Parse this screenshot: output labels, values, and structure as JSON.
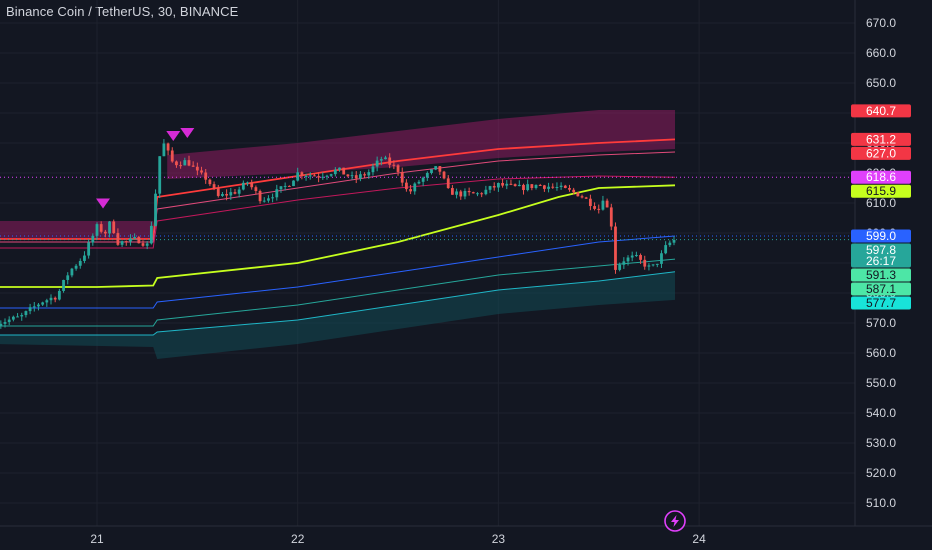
{
  "header": {
    "title": "Binance Coin / TetherUS, 30, BINANCE"
  },
  "chart_data": {
    "type": "candlestick",
    "symbol": "Binance Coin / TetherUS",
    "interval": "30",
    "exchange": "BINANCE",
    "y_range": [
      502,
      675
    ],
    "y_ticks": [
      670,
      660,
      650,
      640,
      630,
      620,
      610,
      600,
      590,
      580,
      570,
      560,
      550,
      540,
      530,
      520,
      510
    ],
    "y_tick_labels": [
      "670.0",
      "660.0",
      "650.0",
      "640.0",
      "630.0",
      "620.0",
      "610.0",
      "600.0",
      "590.0",
      "580.0",
      "570.0",
      "560.0",
      "550.0",
      "540.0",
      "530.0",
      "520.0",
      "510.0"
    ],
    "x_range": [
      20.5,
      24.25
    ],
    "x_ticks": [
      21,
      22,
      23,
      24
    ],
    "x_tick_labels": [
      "21",
      "22",
      "23",
      "24"
    ],
    "price_path": [
      [
        20.5,
        570
      ],
      [
        20.62,
        572
      ],
      [
        20.72,
        577
      ],
      [
        20.8,
        579
      ],
      [
        20.86,
        587
      ],
      [
        20.93,
        592
      ],
      [
        21.0,
        602
      ],
      [
        21.04,
        600
      ],
      [
        21.07,
        604
      ],
      [
        21.1,
        597
      ],
      [
        21.15,
        597
      ],
      [
        21.2,
        598
      ],
      [
        21.25,
        596
      ],
      [
        21.28,
        606
      ],
      [
        21.31,
        625
      ],
      [
        21.33,
        630
      ],
      [
        21.38,
        623
      ],
      [
        21.45,
        624
      ],
      [
        21.5,
        620
      ],
      [
        21.55,
        618
      ],
      [
        21.6,
        612
      ],
      [
        21.7,
        614
      ],
      [
        21.75,
        617
      ],
      [
        21.82,
        611
      ],
      [
        21.88,
        613
      ],
      [
        21.95,
        616
      ],
      [
        22.0,
        620
      ],
      [
        22.1,
        619
      ],
      [
        22.2,
        621
      ],
      [
        22.28,
        618
      ],
      [
        22.35,
        620
      ],
      [
        22.42,
        625
      ],
      [
        22.5,
        621
      ],
      [
        22.55,
        613
      ],
      [
        22.6,
        617
      ],
      [
        22.7,
        622
      ],
      [
        22.75,
        614
      ],
      [
        22.8,
        613
      ],
      [
        22.9,
        613
      ],
      [
        23.0,
        616
      ],
      [
        23.1,
        615
      ],
      [
        23.2,
        616
      ],
      [
        23.3,
        615
      ],
      [
        23.4,
        613
      ],
      [
        23.5,
        608
      ],
      [
        23.52,
        612
      ],
      [
        23.56,
        605
      ],
      [
        23.58,
        588
      ],
      [
        23.62,
        591
      ],
      [
        23.68,
        592
      ],
      [
        23.72,
        590
      ],
      [
        23.76,
        588
      ],
      [
        23.8,
        591
      ],
      [
        23.84,
        596
      ],
      [
        23.88,
        597.8
      ]
    ],
    "candles_end_x": 23.88,
    "overlay_lines": [
      {
        "color": "#ff3b3b",
        "points": [
          [
            20.5,
            598
          ],
          [
            21.28,
            598
          ],
          [
            21.3,
            612
          ],
          [
            22.0,
            619
          ],
          [
            22.5,
            624
          ],
          [
            23.0,
            628
          ],
          [
            23.5,
            630
          ],
          [
            23.88,
            631.2
          ]
        ]
      },
      {
        "color": "#e04a7a",
        "points": [
          [
            20.5,
            597
          ],
          [
            21.28,
            597
          ],
          [
            21.3,
            608
          ],
          [
            22.0,
            615
          ],
          [
            22.5,
            620
          ],
          [
            23.0,
            624
          ],
          [
            23.5,
            626
          ],
          [
            23.88,
            627
          ]
        ]
      },
      {
        "color": "#c2185b",
        "points": [
          [
            20.5,
            595
          ],
          [
            21.28,
            595
          ],
          [
            21.3,
            604
          ],
          [
            22.0,
            611
          ],
          [
            22.5,
            615
          ],
          [
            23.0,
            618
          ],
          [
            23.5,
            619
          ],
          [
            23.88,
            618.6
          ]
        ]
      },
      {
        "color": "#c6ff1e",
        "points": [
          [
            20.5,
            582
          ],
          [
            21.0,
            582
          ],
          [
            21.28,
            582.5
          ],
          [
            21.3,
            585
          ],
          [
            22.0,
            590
          ],
          [
            22.5,
            597
          ],
          [
            23.0,
            606
          ],
          [
            23.3,
            612
          ],
          [
            23.5,
            615
          ],
          [
            23.88,
            615.9
          ]
        ]
      },
      {
        "color": "#2962ff",
        "points": [
          [
            20.5,
            575
          ],
          [
            21.28,
            575
          ],
          [
            21.3,
            577
          ],
          [
            22.0,
            582
          ],
          [
            22.5,
            587
          ],
          [
            23.0,
            592
          ],
          [
            23.5,
            597
          ],
          [
            23.88,
            599
          ]
        ]
      },
      {
        "color": "#26a69a",
        "points": [
          [
            20.5,
            569
          ],
          [
            21.28,
            569
          ],
          [
            21.3,
            571
          ],
          [
            22.0,
            576
          ],
          [
            22.5,
            581
          ],
          [
            23.0,
            586
          ],
          [
            23.5,
            589
          ],
          [
            23.88,
            591.3
          ]
        ]
      },
      {
        "color": "#1fb6c7",
        "points": [
          [
            20.5,
            566
          ],
          [
            21.28,
            566
          ],
          [
            21.3,
            567
          ],
          [
            22.0,
            571
          ],
          [
            22.5,
            576
          ],
          [
            23.0,
            581
          ],
          [
            23.5,
            584
          ],
          [
            23.88,
            587.1
          ]
        ]
      }
    ],
    "upper_band": {
      "color": "#8e1b5e",
      "top": [
        [
          21.35,
          626
        ],
        [
          22.0,
          630
        ],
        [
          22.5,
          634
        ],
        [
          23.0,
          638
        ],
        [
          23.5,
          641
        ],
        [
          23.88,
          641
        ]
      ],
      "bottom": [
        [
          21.35,
          618
        ],
        [
          22.0,
          620
        ],
        [
          22.5,
          622
        ],
        [
          23.0,
          625
        ],
        [
          23.5,
          627
        ],
        [
          23.88,
          628
        ]
      ]
    },
    "lower_band": {
      "color": "#134650",
      "top": [
        [
          20.5,
          566
        ],
        [
          21.28,
          566
        ],
        [
          21.3,
          567
        ],
        [
          22.0,
          571
        ],
        [
          22.5,
          576
        ],
        [
          23.0,
          581
        ],
        [
          23.5,
          584
        ],
        [
          23.88,
          587
        ]
      ],
      "bottom": [
        [
          20.5,
          563
        ],
        [
          21.28,
          562
        ],
        [
          21.3,
          558
        ],
        [
          22.0,
          563
        ],
        [
          22.5,
          568
        ],
        [
          23.0,
          573
        ],
        [
          23.5,
          576
        ],
        [
          23.88,
          577.7
        ]
      ]
    },
    "dotted_levels": [
      {
        "price": 618.6,
        "color": "#e040fb"
      },
      {
        "price": 599.0,
        "color": "#2962ff"
      },
      {
        "price": 597.8,
        "color": "#26a69a"
      }
    ],
    "sell_markers": [
      21.03,
      21.38,
      21.45
    ],
    "price_badges": [
      {
        "text": "640.7",
        "price": 640.7,
        "bg": "#f23645",
        "fg": "#ffffff"
      },
      {
        "text": "631.2",
        "price": 631.2,
        "bg": "#f23645",
        "fg": "#ffffff"
      },
      {
        "text": "627.0",
        "price": 627.0,
        "bg": "#f23645",
        "fg": "#ffffff"
      },
      {
        "text": "618.6",
        "price": 618.6,
        "bg": "#e040fb",
        "fg": "#ffffff"
      },
      {
        "text": "615.9",
        "price": 615.9,
        "bg": "#c6ff1e",
        "fg": "#131722"
      },
      {
        "text": "599.0",
        "price": 599.0,
        "bg": "#2962ff",
        "fg": "#ffffff"
      },
      {
        "text": "597.8",
        "price": 597.8,
        "bg": "#26a69a",
        "fg": "#ffffff",
        "sub": "26:17"
      },
      {
        "text": "591.3",
        "price": 591.3,
        "bg": "#4de6a6",
        "fg": "#131722"
      },
      {
        "text": "587.1",
        "price": 587.1,
        "bg": "#4de6a6",
        "fg": "#131722"
      },
      {
        "text": "577.7",
        "price": 577.7,
        "bg": "#18e3d9",
        "fg": "#131722"
      }
    ],
    "colors": {
      "background": "#131722",
      "grid": "#1e222d",
      "up": "#26a69a",
      "down": "#ef5350",
      "text": "#d1d4dc"
    },
    "grid": true
  }
}
